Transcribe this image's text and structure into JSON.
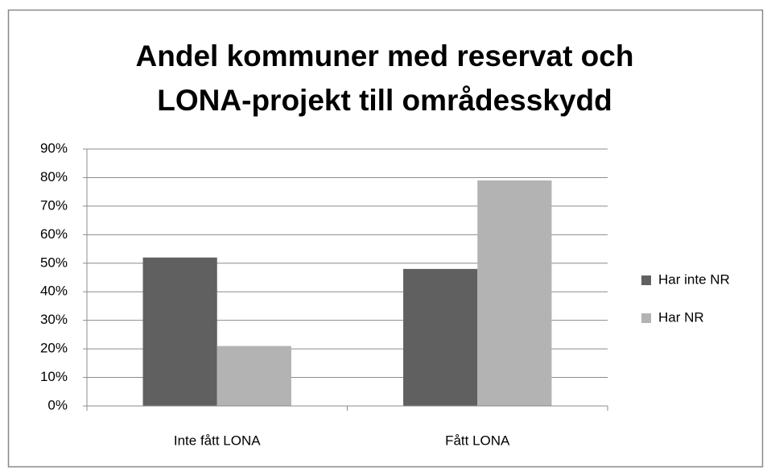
{
  "chart_data": {
    "type": "bar",
    "title": [
      "Andel kommuner med reservat och",
      "LONA-projekt till områdesskydd"
    ],
    "categories": [
      "Inte fått LONA",
      "Fått LONA"
    ],
    "series": [
      {
        "name": "Har inte NR",
        "color": "#606060",
        "values": [
          52,
          48
        ]
      },
      {
        "name": "Har NR",
        "color": "#b3b3b3",
        "values": [
          21,
          79
        ]
      }
    ],
    "ylim": [
      0,
      90
    ],
    "yticks": [
      {
        "value": 0,
        "label": "0%"
      },
      {
        "value": 10,
        "label": "10%"
      },
      {
        "value": 20,
        "label": "20%"
      },
      {
        "value": 30,
        "label": "30%"
      },
      {
        "value": 40,
        "label": "40%"
      },
      {
        "value": 50,
        "label": "50%"
      },
      {
        "value": 60,
        "label": "60%"
      },
      {
        "value": 70,
        "label": "70%"
      },
      {
        "value": 80,
        "label": "80%"
      },
      {
        "value": 90,
        "label": "90%"
      }
    ],
    "grid": true,
    "legend": "right"
  }
}
